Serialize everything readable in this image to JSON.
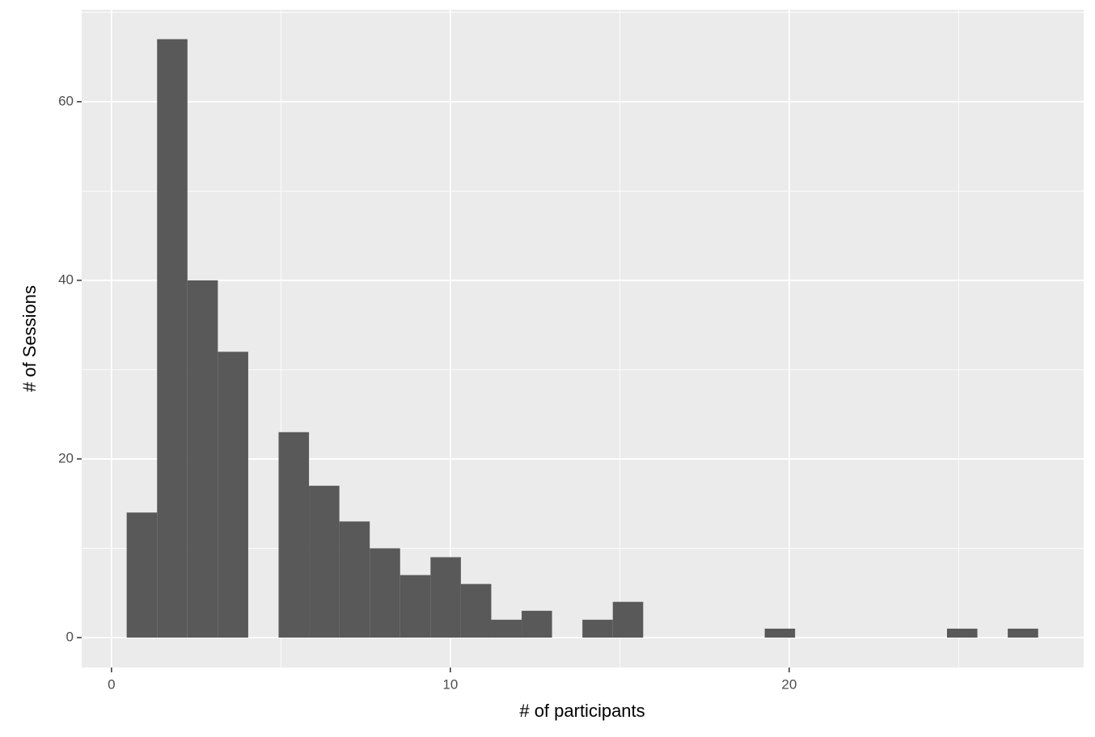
{
  "chart_data": {
    "type": "histogram",
    "x_label": "# of participants",
    "y_label": "# of Sessions",
    "bins": [
      0.4483,
      1.3449,
      2.2415,
      3.1381,
      4.0347,
      4.9313,
      5.8279,
      6.7245,
      7.6211,
      8.5177,
      9.4143,
      10.3109,
      11.2075,
      12.1041,
      13.0007,
      13.8973,
      14.7939,
      15.6905,
      16.5871,
      17.4837,
      18.3803,
      19.2769,
      20.1735,
      21.0701,
      21.9667,
      22.8633,
      23.7599,
      24.6565,
      25.5531,
      26.4497,
      27.3463
    ],
    "values": [
      14,
      67,
      40,
      32,
      0,
      23,
      17,
      13,
      10,
      7,
      9,
      6,
      2,
      3,
      0,
      2,
      4,
      0,
      0,
      0,
      0,
      1,
      0,
      0,
      0,
      0,
      0,
      1,
      0,
      1
    ],
    "color": "#595959",
    "xlim": [
      -0.88,
      28.69
    ],
    "xticks": [
      0,
      10,
      20
    ],
    "xminor": [
      5,
      15,
      25
    ],
    "ylim": [
      -3.35,
      70.3
    ],
    "yticks": [
      0,
      20,
      40,
      60
    ],
    "yminor": [
      10,
      30,
      50,
      70
    ],
    "grid": true
  }
}
